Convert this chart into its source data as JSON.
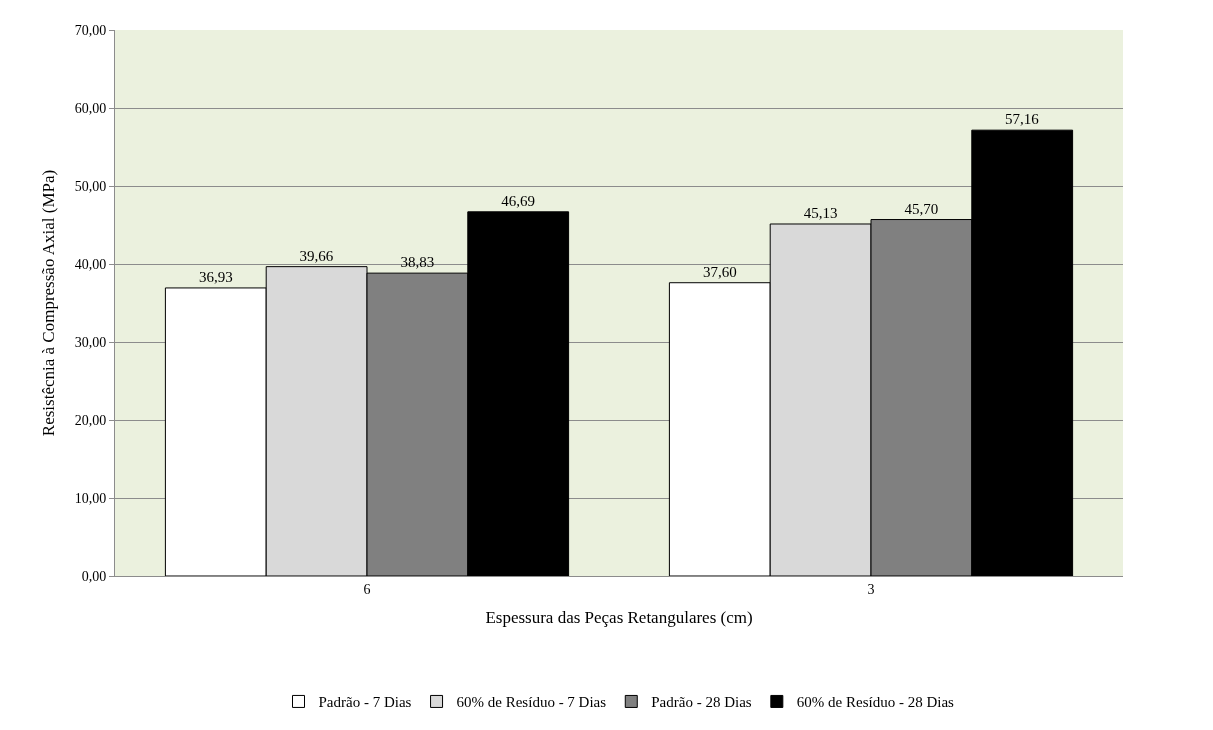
{
  "chart_data": {
    "type": "bar",
    "xlabel": "Espessura das Peças Retangulares (cm)",
    "ylabel": "Resistêcnia à Compressão Axial (MPa)",
    "categories": [
      "6",
      "3"
    ],
    "series": [
      {
        "name": "Padrão - 7 Dias",
        "color": "#ffffff",
        "values": [
          36.93,
          37.6
        ],
        "value_labels": [
          "36,93",
          "37,60"
        ]
      },
      {
        "name": "60% de Resíduo - 7 Dias",
        "color": "#d9d9d9",
        "values": [
          39.66,
          45.13
        ],
        "value_labels": [
          "39,66",
          "45,13"
        ]
      },
      {
        "name": "Padrão - 28 Dias",
        "color": "#808080",
        "values": [
          38.83,
          45.7
        ],
        "value_labels": [
          "38,83",
          "45,70"
        ]
      },
      {
        "name": "60% de Resíduo - 28 Dias",
        "color": "#000000",
        "values": [
          46.69,
          57.16
        ],
        "value_labels": [
          "46,69",
          "57,16"
        ]
      }
    ],
    "ylim": [
      0,
      70
    ],
    "yticks": [
      {
        "value": 0,
        "label": "0,00"
      },
      {
        "value": 10,
        "label": "10,00"
      },
      {
        "value": 20,
        "label": "20,00"
      },
      {
        "value": 30,
        "label": "30,00"
      },
      {
        "value": 40,
        "label": "40,00"
      },
      {
        "value": 50,
        "label": "50,00"
      },
      {
        "value": 60,
        "label": "60,00"
      },
      {
        "value": 70,
        "label": "70,00"
      }
    ],
    "grid": "y",
    "legend": "bottom"
  }
}
